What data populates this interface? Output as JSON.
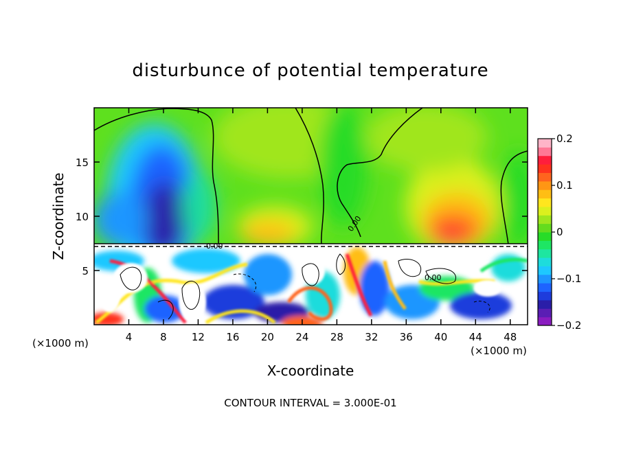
{
  "chart_data": {
    "type": "heatmap",
    "title": "disturbunce of potential temperature",
    "xlabel": "X-coordinate",
    "ylabel": "Z-coordinate",
    "x_unit": "(×1000 m)",
    "z_unit": "(×1000 m)",
    "xlim": [
      0,
      50
    ],
    "ylim": [
      0,
      20
    ],
    "x_ticks": [
      4,
      8,
      12,
      16,
      20,
      24,
      28,
      32,
      36,
      40,
      44,
      48
    ],
    "y_ticks": [
      5,
      10,
      15
    ],
    "colorbar": {
      "range": [
        -0.2,
        0.2
      ],
      "ticks": [
        "0.2",
        "0.1",
        "0",
        "−0.1",
        "−0.2"
      ],
      "colors": [
        "#8a1cc0",
        "#5a1eb4",
        "#2a1ea8",
        "#1e3cdc",
        "#1e64ff",
        "#1e96ff",
        "#1ec8ff",
        "#1edcdc",
        "#1ee6a0",
        "#1ee664",
        "#28dc28",
        "#64dc1e",
        "#a0e61e",
        "#dcf01e",
        "#ffe61e",
        "#ffbe14",
        "#ff9614",
        "#ff641e",
        "#ff321e",
        "#ff1e3c",
        "#ff7896",
        "#ffb4c8"
      ]
    },
    "contour_labels": [
      "0.00",
      "0.00",
      "0.00"
    ],
    "contour_interval_text": "CONTOUR INTERVAL = 3.000E-01"
  }
}
